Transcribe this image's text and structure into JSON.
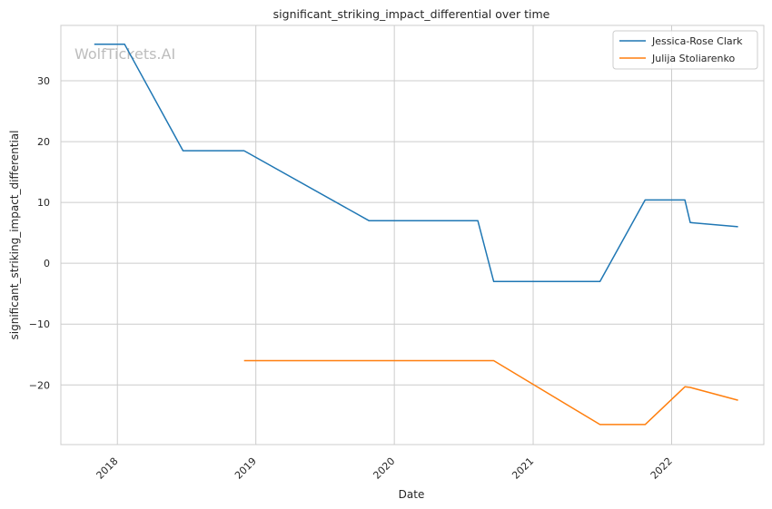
{
  "chart_data": {
    "type": "line",
    "title": "significant_striking_impact_differential over time",
    "xlabel": "Date",
    "ylabel": "significant_striking_impact_differential",
    "watermark": "WolfTickets.AI",
    "x_ticks": [
      "2018",
      "2019",
      "2020",
      "2021",
      "2022"
    ],
    "y_ticks": [
      -20,
      -10,
      0,
      10,
      20,
      30
    ],
    "xlim": [
      "2017-08-05",
      "2022-09-01"
    ],
    "ylim": [
      -29.8,
      39.1
    ],
    "grid": true,
    "legend_position": "top-right",
    "series": [
      {
        "name": "Jessica-Rose Clark",
        "color": "#1f77b4",
        "points": [
          {
            "x": "2017-11-01",
            "y": 36
          },
          {
            "x": "2018-01-20",
            "y": 36
          },
          {
            "x": "2018-06-23",
            "y": 18.5
          },
          {
            "x": "2018-12-01",
            "y": 18.5
          },
          {
            "x": "2019-10-26",
            "y": 7
          },
          {
            "x": "2020-08-08",
            "y": 7
          },
          {
            "x": "2020-09-19",
            "y": -3
          },
          {
            "x": "2021-06-26",
            "y": -3
          },
          {
            "x": "2021-10-23",
            "y": 10.4
          },
          {
            "x": "2022-02-05",
            "y": 10.4
          },
          {
            "x": "2022-02-19",
            "y": 6.7
          },
          {
            "x": "2022-06-25",
            "y": 6
          }
        ]
      },
      {
        "name": "Julija Stoliarenko",
        "color": "#ff7f0e",
        "points": [
          {
            "x": "2018-12-01",
            "y": -16
          },
          {
            "x": "2020-09-19",
            "y": -16
          },
          {
            "x": "2021-06-26",
            "y": -26.5
          },
          {
            "x": "2021-10-23",
            "y": -26.5
          },
          {
            "x": "2022-02-05",
            "y": -20.3
          },
          {
            "x": "2022-02-19",
            "y": -20.4
          },
          {
            "x": "2022-06-25",
            "y": -22.5
          }
        ]
      }
    ]
  }
}
